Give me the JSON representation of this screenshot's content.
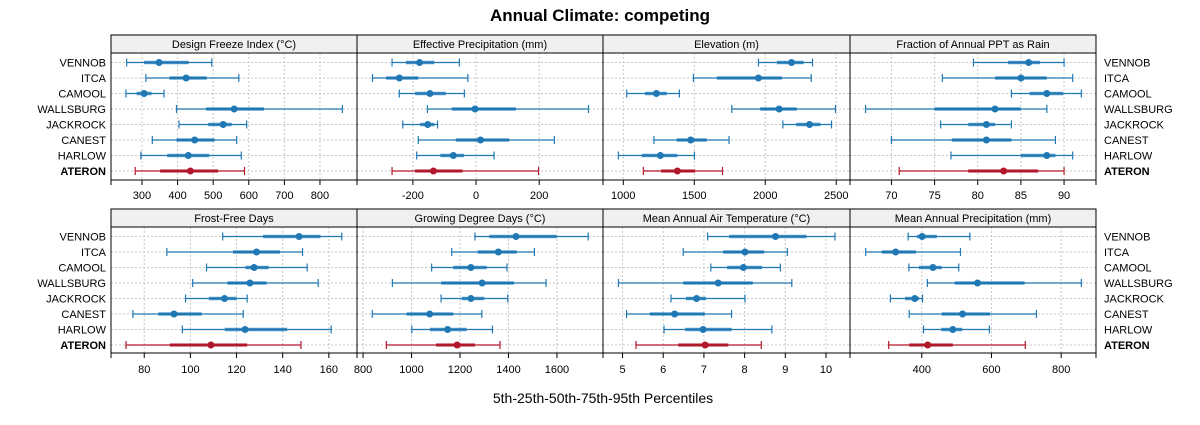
{
  "chart_data": {
    "type": "dotplot-percentile-intervals",
    "title": "Annual Climate: competing",
    "xlabel": "5th-25th-50th-75th-95th Percentiles",
    "ylabel": "",
    "grid": true,
    "layout": "2 rows x 4 panels",
    "colors": {
      "competing": "#1f78b4",
      "reference": "#b2182b"
    },
    "categories": [
      "VENNOB",
      "ITCA",
      "CAMOOL",
      "WALLSBURG",
      "JACKROCK",
      "CANEST",
      "HARLOW",
      "ATERON"
    ],
    "reference_category": "ATERON",
    "percentile_keys": [
      "p5",
      "p25",
      "p50",
      "p75",
      "p95"
    ],
    "panels": [
      {
        "title": "Design Freeze Index (°C)",
        "xlim": [
          213,
          904
        ],
        "ticks": [
          300,
          400,
          500,
          600,
          700,
          800
        ],
        "tick_labels": [
          "300",
          "400",
          "500",
          "600",
          "700",
          "800"
        ],
        "tick_side": "bottom",
        "series": {
          "VENNOB": [
            257,
            306,
            348,
            431,
            496
          ],
          "ITCA": [
            311,
            377,
            424,
            482,
            572
          ],
          "CAMOOL": [
            255,
            285,
            306,
            327,
            362
          ],
          "WALLSBURG": [
            397,
            480,
            559,
            643,
            863
          ],
          "JACKROCK": [
            404,
            486,
            528,
            552,
            594
          ],
          "CANEST": [
            329,
            397,
            448,
            504,
            566
          ],
          "HARLOW": [
            297,
            371,
            430,
            489,
            579
          ],
          "ATERON": [
            281,
            351,
            436,
            514,
            588
          ]
        }
      },
      {
        "title": "Effective Precipitation (mm)",
        "xlim": [
          -377,
          402
        ],
        "ticks": [
          -200,
          0,
          200
        ],
        "tick_labels": [
          "-200",
          "0",
          "200"
        ],
        "tick_side": "bottom",
        "series": {
          "VENNOB": [
            -266,
            -222,
            -179,
            -132,
            -53
          ],
          "ITCA": [
            -328,
            -285,
            -243,
            -183,
            -26
          ],
          "CAMOOL": [
            -243,
            -193,
            -146,
            -96,
            -37
          ],
          "WALLSBURG": [
            -154,
            -77,
            -3,
            126,
            356
          ],
          "JACKROCK": [
            -232,
            -177,
            -153,
            -132,
            -122
          ],
          "CANEST": [
            -183,
            -64,
            14,
            105,
            248
          ],
          "HARLOW": [
            -188,
            -113,
            -72,
            -38,
            57
          ],
          "ATERON": [
            -266,
            -193,
            -135,
            -43,
            198
          ]
        }
      },
      {
        "title": "Elevation (m)",
        "xlim": [
          857,
          2597
        ],
        "ticks": [
          1000,
          1500,
          2000,
          2500
        ],
        "tick_labels": [
          "1000",
          "1500",
          "2000",
          "2500"
        ],
        "tick_side": "bottom",
        "series": {
          "VENNOB": [
            1952,
            2082,
            2185,
            2270,
            2333
          ],
          "ITCA": [
            1494,
            1659,
            1952,
            2117,
            2324
          ],
          "CAMOOL": [
            1024,
            1153,
            1233,
            1306,
            1395
          ],
          "WALLSBURG": [
            1764,
            1964,
            2098,
            2222,
            2495
          ],
          "JACKROCK": [
            2124,
            2218,
            2312,
            2388,
            2467
          ],
          "CANEST": [
            1216,
            1376,
            1475,
            1588,
            1745
          ],
          "HARLOW": [
            965,
            1130,
            1261,
            1381,
            1501
          ],
          "ATERON": [
            1141,
            1266,
            1381,
            1506,
            1699
          ]
        }
      },
      {
        "title": "Fraction of Annual PPT as Rain",
        "xlim": [
          65.2,
          93.7
        ],
        "ticks": [
          70,
          75,
          80,
          85,
          90
        ],
        "tick_labels": [
          "70",
          "75",
          "80",
          "85",
          "90"
        ],
        "tick_side": "bottom",
        "series": {
          "VENNOB": [
            79.5,
            83.5,
            85.9,
            87.2,
            90.0
          ],
          "ITCA": [
            75.9,
            82.0,
            85.0,
            88.0,
            91.0
          ],
          "CAMOOL": [
            83.9,
            86.0,
            88.0,
            89.9,
            92.0
          ],
          "WALLSBURG": [
            67.0,
            75.0,
            82.0,
            85.0,
            88.0
          ],
          "JACKROCK": [
            75.7,
            78.9,
            81.0,
            82.0,
            83.9
          ],
          "CANEST": [
            70.0,
            77.0,
            81.0,
            83.9,
            89.0
          ],
          "HARLOW": [
            76.9,
            85.0,
            88.0,
            89.0,
            91.0
          ],
          "ATERON": [
            70.9,
            78.9,
            83.0,
            87.0,
            90.0
          ]
        }
      },
      {
        "title": "Frost-Free Days",
        "xlim": [
          65.6,
          172.2
        ],
        "ticks": [
          80,
          100,
          120,
          140,
          160
        ],
        "tick_labels": [
          "80",
          "100",
          "120",
          "140",
          "160"
        ],
        "tick_side": "bottom",
        "series": {
          "VENNOB": [
            114.0,
            131.5,
            147.1,
            156.4,
            165.6
          ],
          "ITCA": [
            89.8,
            118.5,
            128.7,
            138.8,
            148.6
          ],
          "CAMOOL": [
            107.0,
            123.9,
            127.6,
            133.9,
            150.6
          ],
          "WALLSBURG": [
            101.0,
            116.0,
            125.8,
            133.0,
            155.4
          ],
          "JACKROCK": [
            97.9,
            108.0,
            114.8,
            120.0,
            124.6
          ],
          "CANEST": [
            75.1,
            86.1,
            92.9,
            104.9,
            122.9
          ],
          "HARLOW": [
            96.5,
            114.9,
            123.7,
            141.9,
            161.0
          ],
          "ATERON": [
            72.1,
            91.1,
            108.9,
            124.6,
            147.9
          ]
        }
      },
      {
        "title": "Growing Degree Days (°C)",
        "xlim": [
          775,
          1790
        ],
        "ticks": [
          800,
          1000,
          1200,
          1400,
          1600
        ],
        "tick_labels": [
          "800",
          "1000",
          "1200",
          "1400",
          "1600"
        ],
        "tick_side": "bottom",
        "series": {
          "VENNOB": [
            1262,
            1321,
            1431,
            1599,
            1729
          ],
          "ITCA": [
            1166,
            1273,
            1358,
            1434,
            1507
          ],
          "CAMOOL": [
            1083,
            1172,
            1245,
            1310,
            1394
          ],
          "WALLSBURG": [
            921,
            1122,
            1291,
            1423,
            1555
          ],
          "JACKROCK": [
            1122,
            1207,
            1245,
            1300,
            1397
          ],
          "CANEST": [
            838,
            980,
            1075,
            1172,
            1290
          ],
          "HARLOW": [
            1001,
            1076,
            1149,
            1227,
            1334
          ],
          "ATERON": [
            896,
            1101,
            1188,
            1262,
            1365
          ]
        }
      },
      {
        "title": "Mean Annual Air Temperature (°C)",
        "xlim": [
          4.52,
          10.59
        ],
        "ticks": [
          5,
          6,
          7,
          8,
          9,
          10
        ],
        "tick_labels": [
          "5",
          "6",
          "7",
          "8",
          "9",
          "10"
        ],
        "tick_side": "bottom",
        "series": {
          "VENNOB": [
            7.09,
            7.62,
            8.76,
            9.52,
            10.22
          ],
          "ITCA": [
            6.49,
            7.47,
            8.01,
            8.48,
            9.05
          ],
          "CAMOOL": [
            7.17,
            7.57,
            7.97,
            8.43,
            8.88
          ],
          "WALLSBURG": [
            4.9,
            6.49,
            7.35,
            8.2,
            9.16
          ],
          "JACKROCK": [
            6.19,
            6.56,
            6.82,
            7.05,
            8.01
          ],
          "CANEST": [
            5.1,
            5.67,
            6.28,
            7.02,
            7.68
          ],
          "HARLOW": [
            6.02,
            6.54,
            6.98,
            7.68,
            8.67
          ],
          "ATERON": [
            5.33,
            6.37,
            7.03,
            7.6,
            8.41
          ]
        }
      },
      {
        "title": "Mean Annual Precipitation (mm)",
        "xlim": [
          194,
          900
        ],
        "ticks": [
          400,
          600,
          800
        ],
        "tick_labels": [
          "400",
          "600",
          "800"
        ],
        "tick_side": "bottom",
        "series": {
          "VENNOB": [
            361,
            386,
            401,
            443,
            538
          ],
          "ITCA": [
            239,
            285,
            325,
            383,
            511
          ],
          "CAMOOL": [
            363,
            392,
            432,
            457,
            506
          ],
          "WALLSBURG": [
            416,
            494,
            560,
            695,
            858
          ],
          "JACKROCK": [
            310,
            352,
            380,
            392,
            402
          ],
          "CANEST": [
            364,
            457,
            517,
            596,
            729
          ],
          "HARLOW": [
            405,
            456,
            489,
            516,
            594
          ],
          "ATERON": [
            305,
            364,
            417,
            489,
            697
          ]
        }
      }
    ]
  }
}
